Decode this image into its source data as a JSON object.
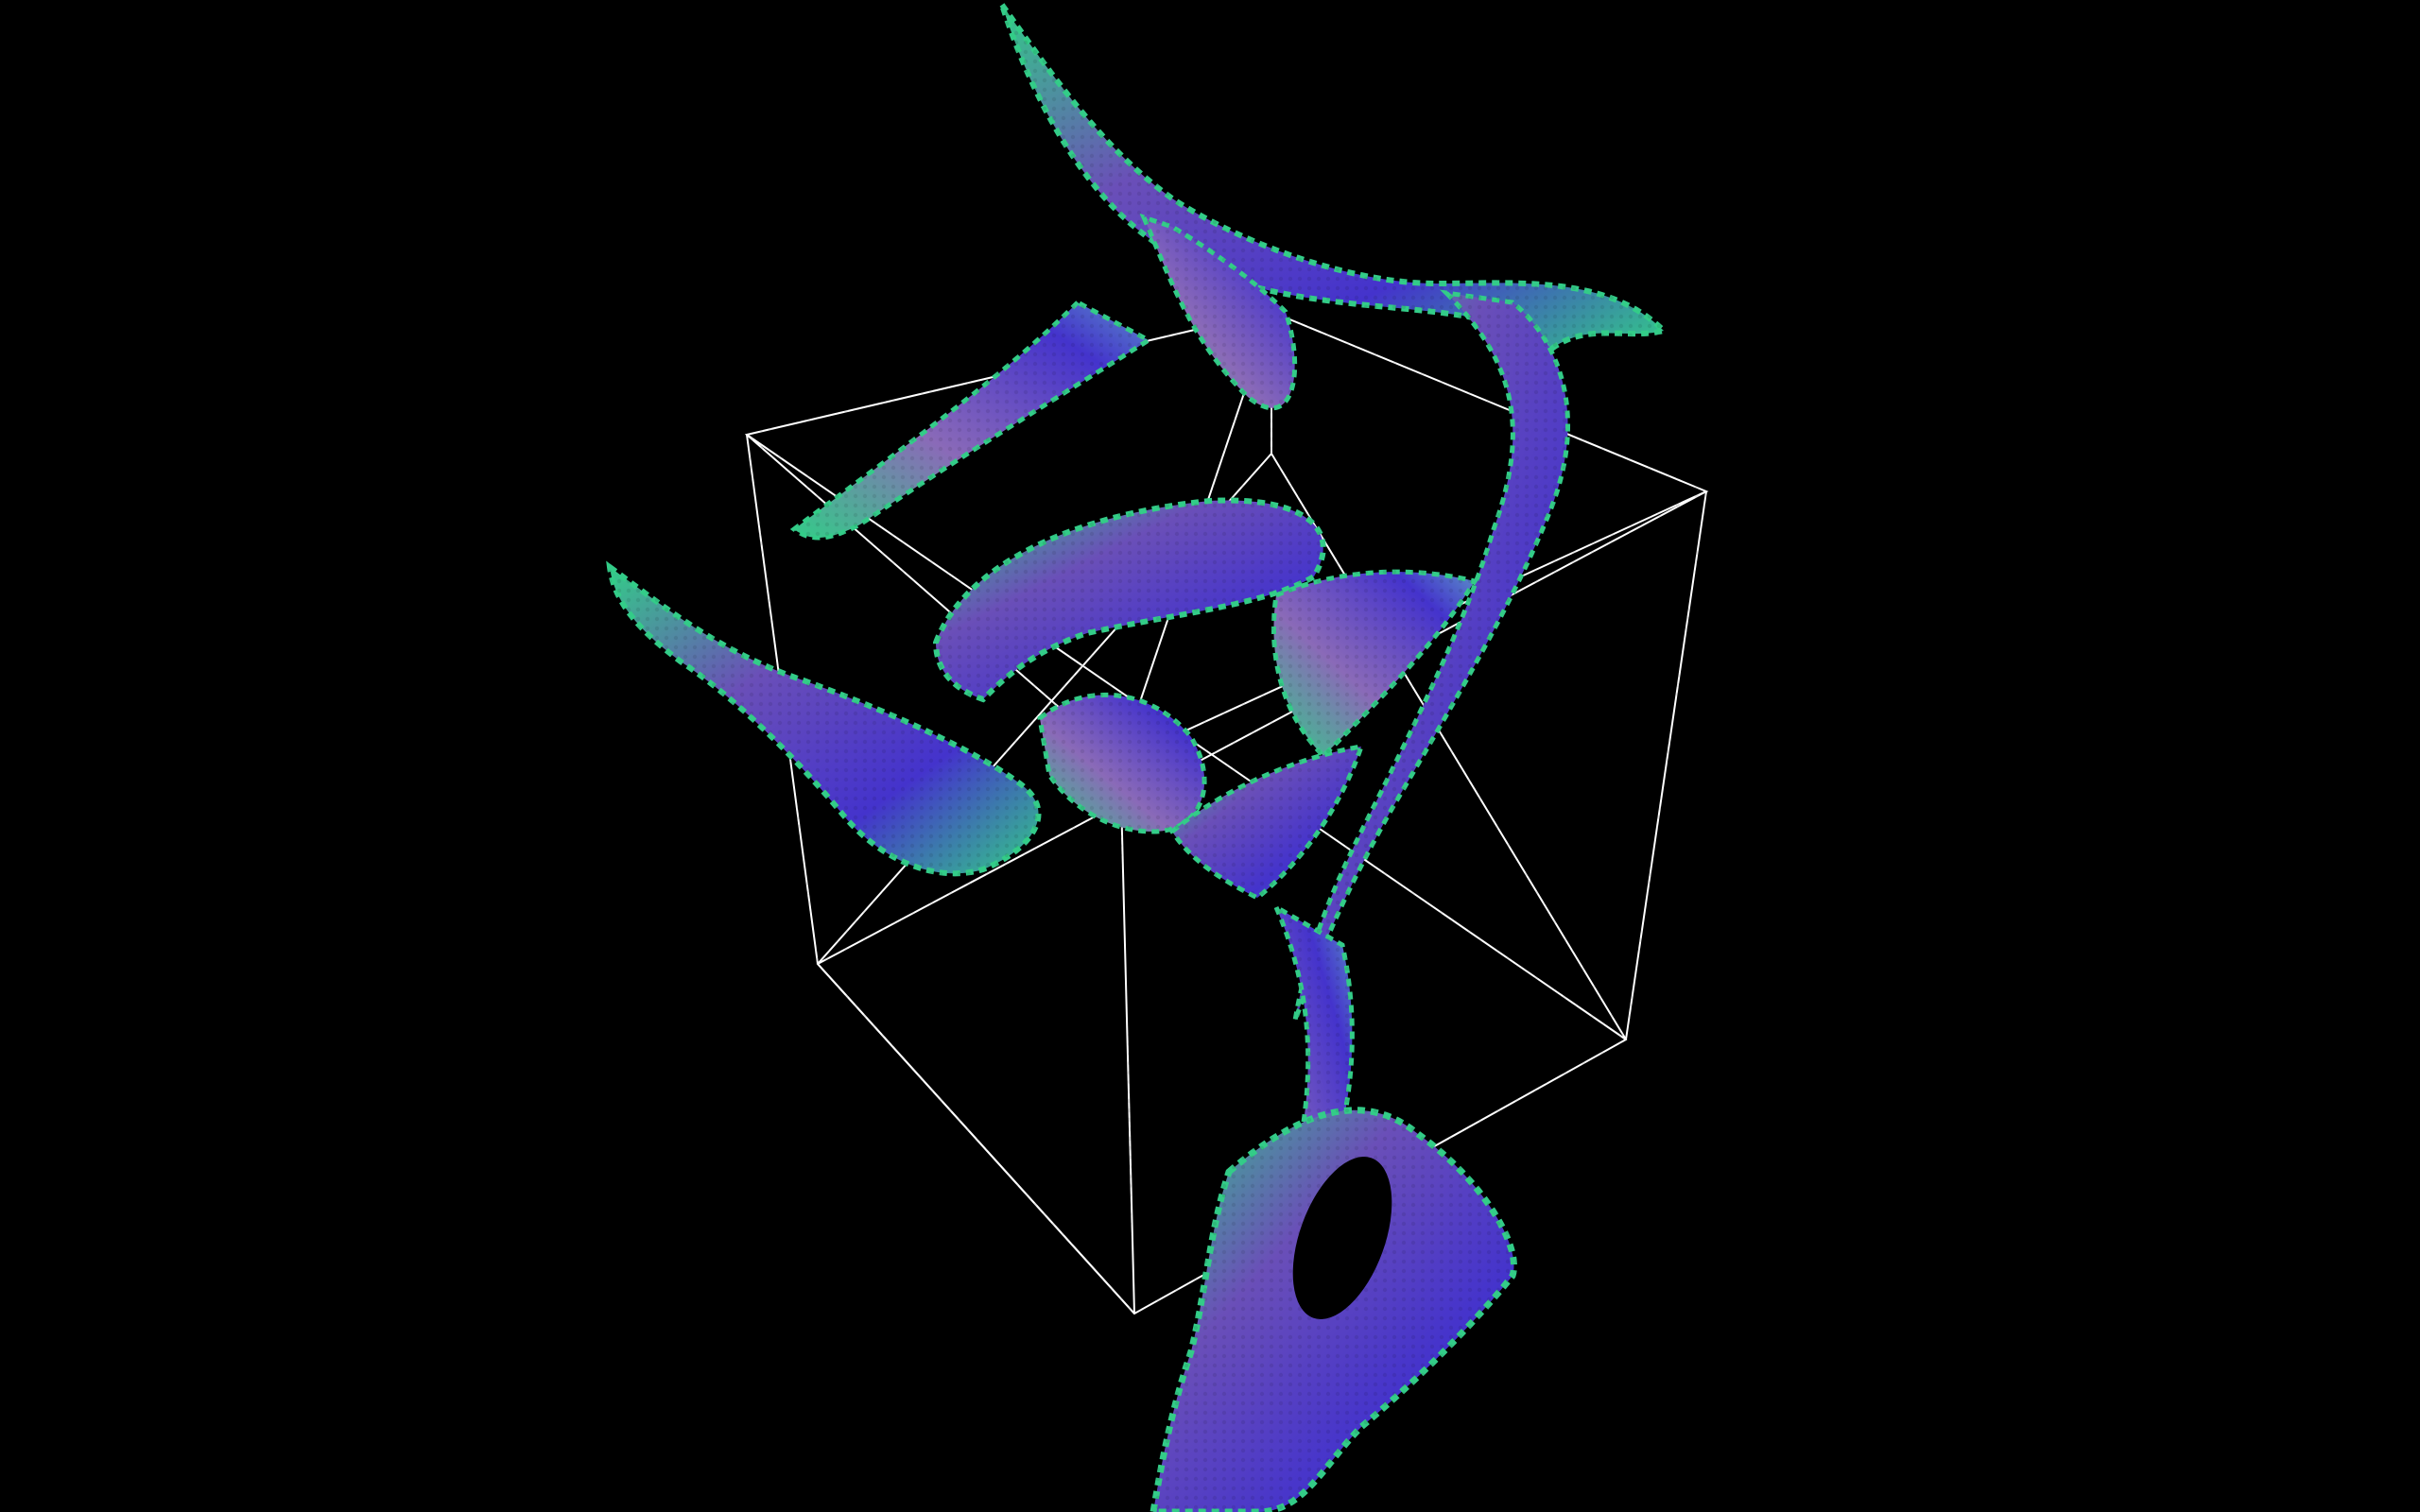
{
  "scene": {
    "background_color": "#000000",
    "wireframe_color": "#ffffff",
    "ribbon_palette": {
      "core": "#4433cc",
      "mid": "#6a4fb8",
      "edge": "#33cc88",
      "highlight": "#8a6ab8"
    },
    "objects": [
      "wireframe-cube",
      "twisted-ribbon-surface"
    ]
  }
}
